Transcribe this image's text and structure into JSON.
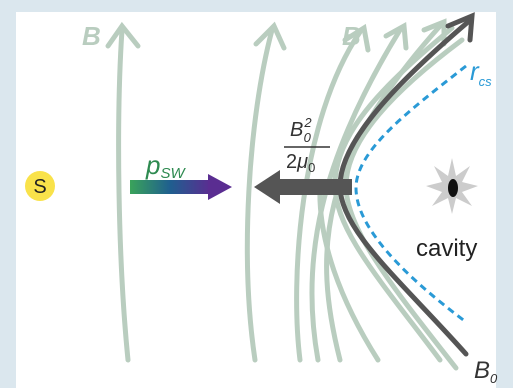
{
  "labels": {
    "field_left": "B",
    "field_top": "B",
    "sun": "S",
    "solar_wind_pressure": {
      "symbol": "p",
      "subscript": "SW"
    },
    "magnetic_pressure": {
      "numerator": {
        "symbol": "B",
        "subscript": "0",
        "superscript": "2"
      },
      "denominator": {
        "coefficient": "2",
        "symbol": "μ",
        "subscript": "0"
      }
    },
    "current_sheet_radius": {
      "symbol": "r",
      "subscript": "cs"
    },
    "cavity": "cavity",
    "boundary_field": {
      "symbol": "B",
      "subscript": "0"
    }
  }
}
